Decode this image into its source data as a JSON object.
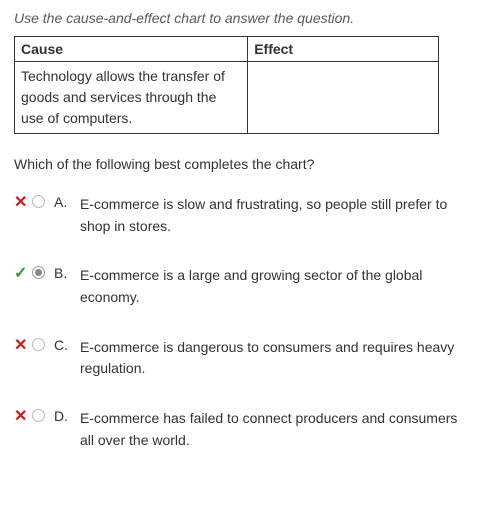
{
  "instruction": "Use the cause-and-effect chart to answer the question.",
  "table": {
    "headers": {
      "cause": "Cause",
      "effect": "Effect"
    },
    "row": {
      "cause": "Technology allows the transfer of goods and services through the use of computers.",
      "effect": ""
    }
  },
  "question": "Which of the following best completes the chart?",
  "marks": {
    "wrong_glyph": "✕",
    "correct_glyph": "✓"
  },
  "colors": {
    "wrong": "#d01818",
    "correct": "#2e9a2e",
    "text": "#333333",
    "instruction": "#5a5a5a",
    "border": "#333333"
  },
  "options": [
    {
      "letter": "A.",
      "text": "E-commerce is slow and frustrating, so people still prefer to shop in stores.",
      "selected": false,
      "status": "wrong"
    },
    {
      "letter": "B.",
      "text": "E-commerce is a large and growing sector of the global economy.",
      "selected": true,
      "status": "correct"
    },
    {
      "letter": "C.",
      "text": "E-commerce is dangerous to consumers and requires heavy regulation.",
      "selected": false,
      "status": "wrong"
    },
    {
      "letter": "D.",
      "text": "E-commerce has failed to connect producers and consumers all over the world.",
      "selected": false,
      "status": "wrong"
    }
  ]
}
